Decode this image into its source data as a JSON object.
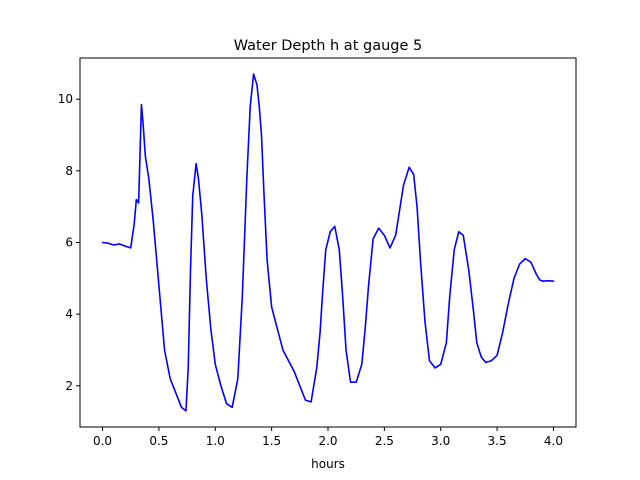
{
  "chart_data": {
    "type": "line",
    "title": "Water Depth h at gauge 5",
    "xlabel": "hours",
    "ylabel": "",
    "xlim": [
      -0.2,
      4.2
    ],
    "ylim": [
      0.85,
      11.15
    ],
    "xticks": [
      0.0,
      0.5,
      1.0,
      1.5,
      2.0,
      2.5,
      3.0,
      3.5,
      4.0
    ],
    "xtick_labels": [
      "0.0",
      "0.5",
      "1.0",
      "1.5",
      "2.0",
      "2.5",
      "3.0",
      "3.5",
      "4.0"
    ],
    "yticks": [
      2,
      4,
      6,
      8,
      10
    ],
    "ytick_labels": [
      "2",
      "4",
      "6",
      "8",
      "10"
    ],
    "grid": false,
    "series": [
      {
        "color": "#0000ff",
        "x": [
          0.0,
          0.05,
          0.1,
          0.15,
          0.2,
          0.25,
          0.28,
          0.3,
          0.32,
          0.33,
          0.345,
          0.36,
          0.38,
          0.41,
          0.45,
          0.5,
          0.55,
          0.6,
          0.65,
          0.7,
          0.74,
          0.76,
          0.78,
          0.8,
          0.83,
          0.85,
          0.88,
          0.92,
          0.96,
          1.0,
          1.05,
          1.1,
          1.15,
          1.2,
          1.24,
          1.28,
          1.31,
          1.34,
          1.37,
          1.39,
          1.41,
          1.43,
          1.46,
          1.5,
          1.55,
          1.6,
          1.65,
          1.7,
          1.75,
          1.8,
          1.85,
          1.9,
          1.93,
          1.95,
          1.98,
          2.02,
          2.06,
          2.1,
          2.13,
          2.16,
          2.2,
          2.25,
          2.3,
          2.33,
          2.36,
          2.4,
          2.45,
          2.5,
          2.55,
          2.6,
          2.63,
          2.67,
          2.72,
          2.76,
          2.79,
          2.82,
          2.86,
          2.9,
          2.95,
          3.0,
          3.05,
          3.08,
          3.12,
          3.16,
          3.2,
          3.25,
          3.29,
          3.32,
          3.36,
          3.4,
          3.45,
          3.5,
          3.55,
          3.6,
          3.65,
          3.7,
          3.75,
          3.8,
          3.85,
          3.88,
          3.91,
          3.94,
          3.97,
          4.0
        ],
        "y": [
          6.0,
          5.98,
          5.93,
          5.96,
          5.9,
          5.85,
          6.5,
          7.2,
          7.1,
          8.2,
          9.85,
          9.3,
          8.4,
          7.8,
          6.6,
          4.8,
          3.0,
          2.2,
          1.8,
          1.4,
          1.3,
          2.5,
          5.2,
          7.3,
          8.2,
          7.8,
          6.8,
          5.0,
          3.6,
          2.6,
          2.0,
          1.5,
          1.4,
          2.2,
          4.5,
          7.8,
          9.8,
          10.7,
          10.4,
          9.8,
          9.0,
          7.5,
          5.5,
          4.2,
          3.6,
          3.0,
          2.7,
          2.4,
          2.0,
          1.6,
          1.55,
          2.5,
          3.5,
          4.5,
          5.8,
          6.3,
          6.45,
          5.8,
          4.5,
          3.0,
          2.1,
          2.1,
          2.6,
          3.6,
          4.8,
          6.1,
          6.4,
          6.2,
          5.85,
          6.2,
          6.8,
          7.6,
          8.1,
          7.9,
          7.0,
          5.5,
          3.8,
          2.7,
          2.5,
          2.6,
          3.2,
          4.5,
          5.8,
          6.3,
          6.2,
          5.2,
          4.1,
          3.2,
          2.8,
          2.65,
          2.7,
          2.85,
          3.5,
          4.3,
          5.0,
          5.4,
          5.55,
          5.45,
          5.1,
          4.95,
          4.92,
          4.93,
          4.93,
          4.92
        ]
      }
    ]
  }
}
